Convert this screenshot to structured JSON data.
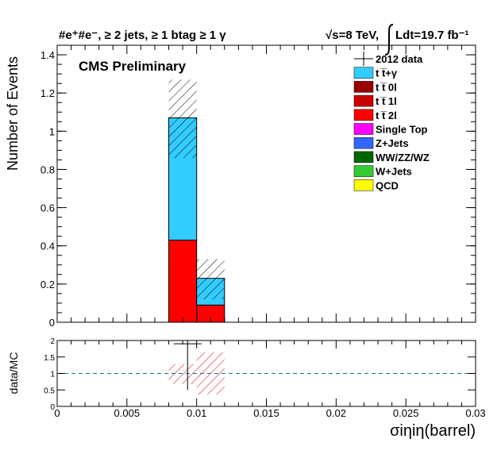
{
  "header": {
    "left": "#e⁺#e⁻, ≥ 2 jets, ≥ 1 btag ≥ 1 γ",
    "right_sqrt": "√s=8 TeV,",
    "right_lumi": "Ldt=19.7 fb⁻¹"
  },
  "watermark": "CMS Preliminary",
  "chart_data": [
    {
      "type": "bar",
      "stacked": true,
      "ylabel": "Number of Events",
      "ylim": [
        0,
        1.45
      ],
      "yticks": [
        0,
        0.2,
        0.4,
        0.6,
        0.8,
        1,
        1.2,
        1.4
      ],
      "xlim": [
        0,
        0.03
      ],
      "bins": [
        [
          0.008,
          0.01
        ],
        [
          0.01,
          0.012
        ]
      ],
      "series": [
        {
          "name": "t t̅ 2l",
          "values": [
            0.43,
            0.09
          ],
          "color": "#ff0000"
        },
        {
          "name": "t t̅+γ",
          "values": [
            0.64,
            0.14
          ],
          "color": "#33ccff"
        }
      ],
      "uncertainty_band": [
        [
          0.86,
          1.27
        ],
        [
          0.12,
          0.33
        ]
      ],
      "data_points": [],
      "legend": {
        "placement": "top-right",
        "entries": [
          {
            "label": "2012 data",
            "kind": "marker",
            "color": "#000000"
          },
          {
            "label": "t t̅+γ",
            "color": "#33ccff"
          },
          {
            "label": "t t̅ 0l",
            "color": "#990000"
          },
          {
            "label": "t t̅ 1l",
            "color": "#cc0000"
          },
          {
            "label": "t t̅ 2l",
            "color": "#ff0000"
          },
          {
            "label": "Single Top",
            "color": "#ff00ff"
          },
          {
            "label": "Z+Jets",
            "color": "#3366ff"
          },
          {
            "label": "WW/ZZ/WZ",
            "color": "#006600"
          },
          {
            "label": "W+Jets",
            "color": "#33cc33"
          },
          {
            "label": "QCD",
            "color": "#ffff00"
          }
        ]
      }
    },
    {
      "type": "scatter",
      "ylabel": "data/MC",
      "xlabel": "σiηiη(barrel)",
      "ylim": [
        0,
        2
      ],
      "yticks": [
        0,
        0.5,
        1,
        1.5,
        2
      ],
      "xlim": [
        0,
        0.03
      ],
      "xticks": [
        0,
        0.005,
        0.01,
        0.015,
        0.02,
        0.025,
        0.03
      ],
      "reference_line": 1,
      "points": [
        {
          "x": 0.00935,
          "y": 1.9,
          "err_low": 1.4,
          "err_high": 0.3,
          "xerr": 0.001
        }
      ],
      "uncertainty_band": [
        [
          0.008,
          0.01,
          0.68,
          1.28
        ],
        [
          0.01,
          0.012,
          0.36,
          1.64
        ]
      ]
    }
  ]
}
